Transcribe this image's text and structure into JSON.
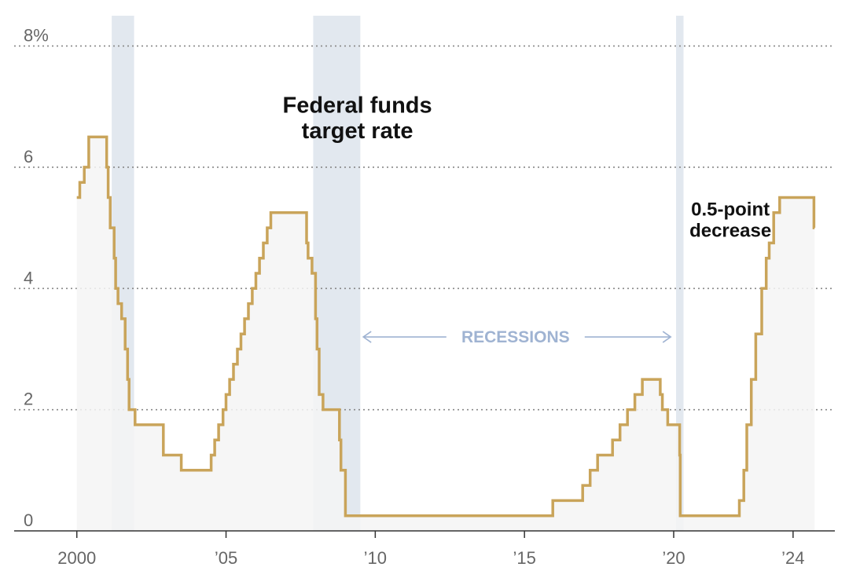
{
  "colors": {
    "line": "#c9a45a",
    "fill": "#f5f5f5",
    "recession": "#e2e8ef",
    "grid": "#888888",
    "recession_label": "#9fb3d2",
    "axis": "#333333"
  },
  "chart_data": {
    "type": "line",
    "title": "",
    "xlabel": "",
    "ylabel": "",
    "xlim": [
      1997.9,
      2025.4
    ],
    "ylim": [
      0,
      8.5
    ],
    "grid": "horizontal-dotted",
    "series": [
      {
        "name": "Federal funds target rate",
        "x": [
          2000.0,
          2000.1,
          2000.25,
          2000.3,
          2000.4,
          2000.6,
          2001.0,
          2001.05,
          2001.12,
          2001.25,
          2001.3,
          2001.38,
          2001.5,
          2001.62,
          2001.7,
          2001.75,
          2001.8,
          2001.88,
          2001.95,
          2002.0,
          2002.9,
          2003.5,
          2004.0,
          2004.5,
          2004.62,
          2004.75,
          2004.9,
          2005.0,
          2005.12,
          2005.25,
          2005.38,
          2005.5,
          2005.62,
          2005.75,
          2005.88,
          2006.0,
          2006.12,
          2006.25,
          2006.38,
          2006.5,
          2007.7,
          2007.75,
          2007.88,
          2008.0,
          2008.05,
          2008.12,
          2008.25,
          2008.3,
          2008.8,
          2008.85,
          2008.9,
          2009.0,
          2015.95,
          2016.95,
          2017.2,
          2017.45,
          2017.95,
          2018.2,
          2018.45,
          2018.7,
          2018.95,
          2019.55,
          2019.62,
          2019.8,
          2020.2,
          2020.22,
          2022.2,
          2022.35,
          2022.45,
          2022.6,
          2022.75,
          2022.95,
          2023.1,
          2023.2,
          2023.35,
          2023.55,
          2024.7,
          2024.72
        ],
        "y": [
          5.5,
          5.75,
          6.0,
          6.0,
          6.5,
          6.5,
          6.0,
          5.5,
          5.0,
          4.5,
          4.0,
          3.75,
          3.5,
          3.0,
          2.5,
          2.0,
          2.0,
          2.0,
          1.75,
          1.75,
          1.25,
          1.0,
          1.0,
          1.25,
          1.5,
          1.75,
          2.0,
          2.25,
          2.5,
          2.75,
          3.0,
          3.25,
          3.5,
          3.75,
          4.0,
          4.25,
          4.5,
          4.75,
          5.0,
          5.25,
          4.75,
          4.5,
          4.25,
          3.5,
          3.0,
          2.25,
          2.0,
          2.0,
          1.5,
          1.0,
          1.0,
          0.25,
          0.5,
          0.75,
          1.0,
          1.25,
          1.5,
          1.75,
          2.0,
          2.25,
          2.5,
          2.25,
          2.0,
          1.75,
          1.25,
          0.25,
          0.5,
          1.0,
          1.75,
          2.5,
          3.25,
          4.0,
          4.5,
          4.75,
          5.25,
          5.5,
          5.0,
          5.0
        ]
      }
    ],
    "y_ticks": [
      {
        "value": 0,
        "label": "0"
      },
      {
        "value": 2,
        "label": "2"
      },
      {
        "value": 4,
        "label": "4"
      },
      {
        "value": 6,
        "label": "6"
      },
      {
        "value": 8,
        "label": "8%"
      }
    ],
    "x_ticks": [
      {
        "value": 2000,
        "label": "2000"
      },
      {
        "value": 2005,
        "label": "’05"
      },
      {
        "value": 2010,
        "label": "’10"
      },
      {
        "value": 2015,
        "label": "’15"
      },
      {
        "value": 2020,
        "label": "’20"
      },
      {
        "value": 2024,
        "label": "’24"
      }
    ],
    "recessions": [
      {
        "start": 2001.17,
        "end": 2001.92
      },
      {
        "start": 2007.92,
        "end": 2009.5
      },
      {
        "start": 2020.08,
        "end": 2020.33
      }
    ],
    "annotations": [
      {
        "lines": [
          "Federal funds",
          "target rate"
        ],
        "x": 2009.4,
        "y": 6.9,
        "size": 29
      },
      {
        "lines": [
          "0.5-point",
          "decrease"
        ],
        "x": 2021.9,
        "y": 5.2,
        "size": 24
      }
    ],
    "recessions_label": {
      "text": "RECESSIONS",
      "x": 2014.7,
      "y": 3.2,
      "arrow_from": 2009.6,
      "arrow_to": 2019.9
    }
  }
}
